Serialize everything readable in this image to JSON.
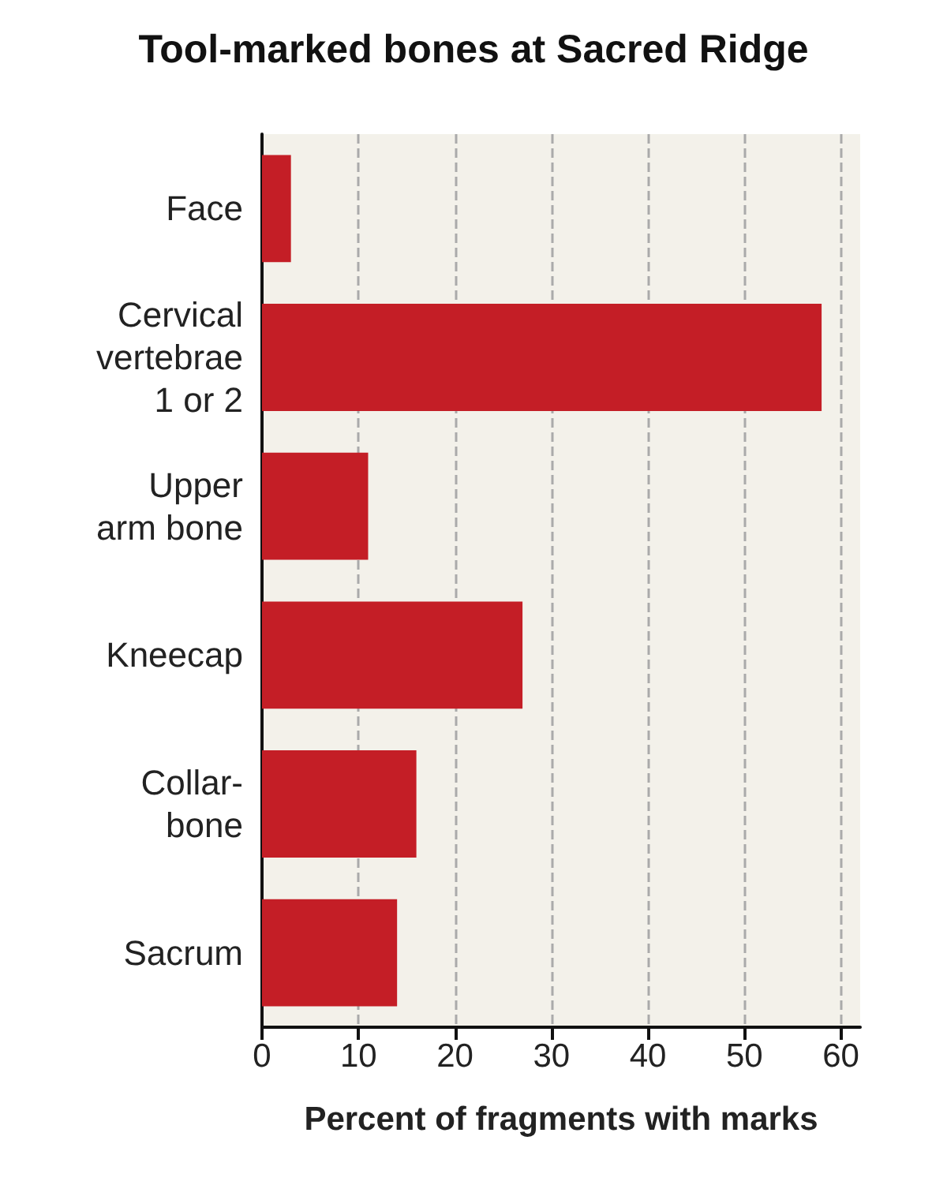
{
  "chart_data": {
    "type": "bar",
    "orientation": "horizontal",
    "title": "Tool-marked bones at Sacred Ridge",
    "xlabel": "Percent of fragments with marks",
    "categories": [
      "Face",
      "Cervical\nvertebrae\n1 or 2",
      "Upper\narm bone",
      "Kneecap",
      "Collar-\nbone",
      "Sacrum"
    ],
    "values": [
      3,
      58,
      11,
      27,
      16,
      14
    ],
    "color": "#c41e26",
    "xlim": [
      0,
      62
    ],
    "xticks": [
      0,
      10,
      20,
      30,
      40,
      50,
      60
    ],
    "grid": "x"
  }
}
